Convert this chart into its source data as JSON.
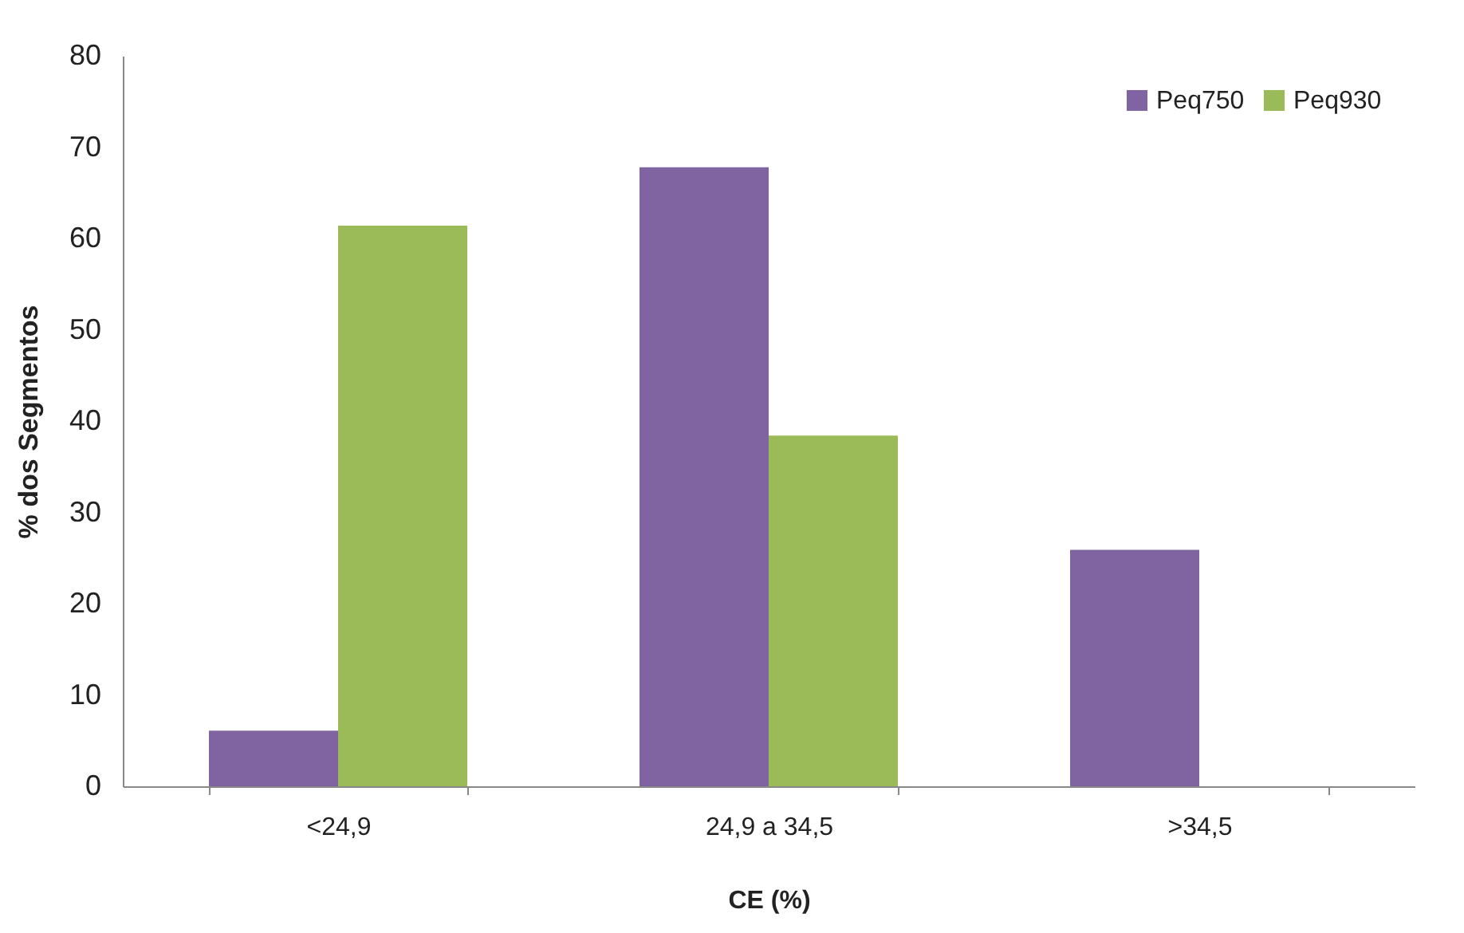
{
  "chart_data": {
    "type": "bar",
    "xlabel": "CE (%)",
    "ylabel": "% dos Segmentos",
    "categories": [
      "<24,9",
      "24,9 a 34,5",
      ">34,5"
    ],
    "series": [
      {
        "name": "Peq750",
        "color": "#8064a2",
        "values": [
          6.1,
          67.8,
          25.9
        ]
      },
      {
        "name": "Peq930",
        "color": "#9bbb59",
        "values": [
          61.4,
          38.4,
          0
        ]
      }
    ],
    "ylim": [
      0,
      80
    ],
    "yticks": [
      0,
      10,
      20,
      30,
      40,
      50,
      60,
      70,
      80
    ],
    "grid": false,
    "legend": "top right"
  }
}
